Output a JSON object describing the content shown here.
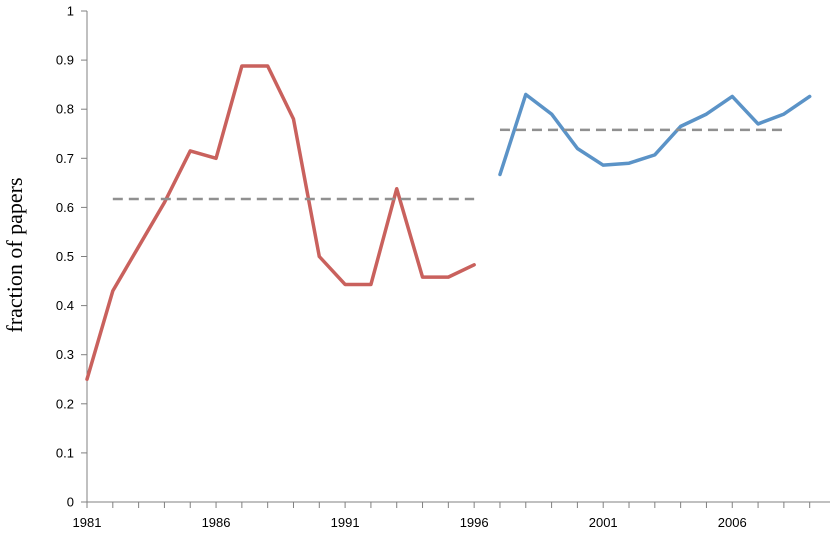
{
  "chart_data": {
    "type": "line",
    "xlabel": "",
    "ylabel": "fraction of papers",
    "xlim": [
      1981,
      2010
    ],
    "ylim": [
      0,
      1
    ],
    "x_ticks": [
      1981,
      1986,
      1991,
      1996,
      2001,
      2006
    ],
    "y_ticks": [
      "0",
      "0.1",
      "0.2",
      "0.3",
      "0.4",
      "0.5",
      "0.6",
      "0.7",
      "0.8",
      "0.9",
      "1"
    ],
    "grid": false,
    "legend": "none",
    "series": [
      {
        "color": "#C9615D",
        "style": "solid",
        "x": [
          1981,
          1982,
          1983,
          1984,
          1985,
          1986,
          1987,
          1988,
          1989,
          1990,
          1991,
          1992,
          1993,
          1994,
          1995,
          1996
        ],
        "values": [
          0.25,
          0.43,
          0.52,
          0.61,
          0.715,
          0.7,
          0.888,
          0.888,
          0.78,
          0.5,
          0.443,
          0.443,
          0.638,
          0.458,
          0.458,
          0.483
        ]
      },
      {
        "color": "#5B93C7",
        "style": "solid",
        "x": [
          1997,
          1998,
          1999,
          2000,
          2001,
          2002,
          2003,
          2004,
          2005,
          2006,
          2007,
          2008,
          2009
        ],
        "values": [
          0.667,
          0.83,
          0.79,
          0.72,
          0.686,
          0.69,
          0.707,
          0.765,
          0.79,
          0.826,
          0.77,
          0.79,
          0.826
        ]
      },
      {
        "color": "#909090",
        "style": "dashed",
        "x": [
          1982,
          1996
        ],
        "values": [
          0.617,
          0.617
        ]
      },
      {
        "color": "#909090",
        "style": "dashed",
        "x": [
          1997,
          2008
        ],
        "values": [
          0.758,
          0.758
        ]
      }
    ]
  }
}
